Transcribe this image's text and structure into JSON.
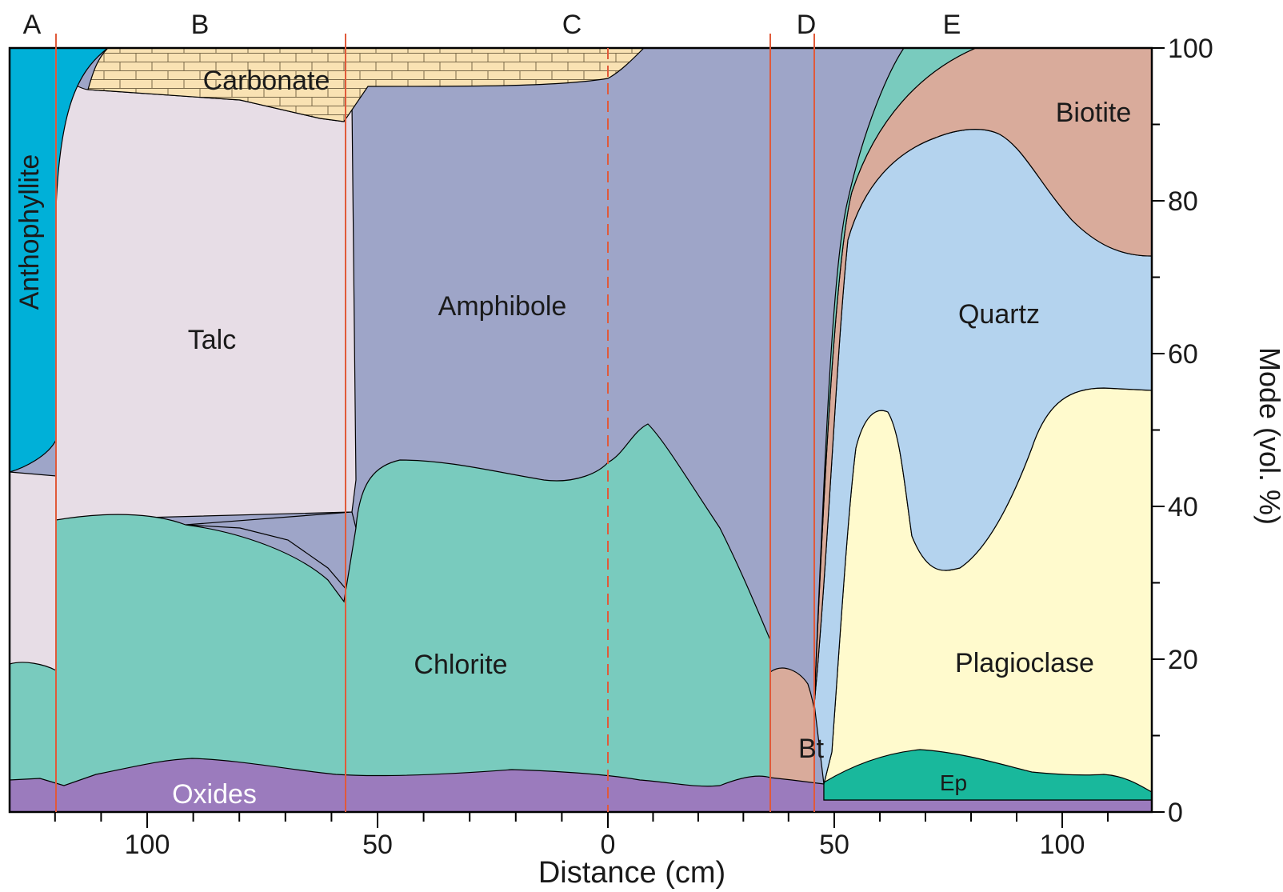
{
  "chart_data": {
    "type": "area",
    "xlabel": "Distance (cm)",
    "ylabel": "Mode (vol. %)",
    "ylim": [
      0,
      100
    ],
    "y_ticks": [
      "0",
      "20",
      "40",
      "60",
      "80",
      "100"
    ],
    "x_ticks": [
      "100",
      "50",
      "0",
      "50",
      "100"
    ],
    "zones": [
      "A",
      "B",
      "C",
      "D",
      "E"
    ],
    "layers": [
      {
        "name": "Oxides",
        "color": "#9b7bbd"
      },
      {
        "name": "Chlorite",
        "color": "#79cbbe"
      },
      {
        "name": "Talc",
        "color": "#e7dde6"
      },
      {
        "name": "Amphibole",
        "color": "#9ea5c8"
      },
      {
        "name": "Carbonate",
        "color": "#f9e2b3"
      },
      {
        "name": "Anthophyllite",
        "color": "#00b0d8"
      },
      {
        "name": "Bt",
        "color": "#d9ab9b"
      },
      {
        "name": "Ep",
        "color": "#19b89c"
      },
      {
        "name": "Plagioclase",
        "color": "#fffacd"
      },
      {
        "name": "Quartz",
        "color": "#b4d3ee"
      },
      {
        "name": "Biotite",
        "color": "#d9ab9b"
      }
    ],
    "series": [
      {
        "name": "Oxides",
        "note": "top boundary, x in left-side cm (decreasing)",
        "x": [
          126,
          120,
          110,
          100,
          90,
          80,
          70,
          60,
          50,
          40,
          30,
          20,
          10,
          0,
          -10,
          -20,
          -30,
          -35
        ],
        "y": [
          2,
          1.5,
          3,
          4,
          4.5,
          4,
          3,
          2.5,
          2.5,
          3,
          3.5,
          3.5,
          3,
          2.5,
          1.5,
          2,
          2.5,
          2
        ]
      },
      {
        "name": "Chlorite",
        "x": [
          120,
          110,
          100,
          90,
          80,
          70,
          60,
          56,
          50,
          40,
          30,
          20,
          10,
          0,
          -10,
          -20,
          -30,
          -35,
          -42
        ],
        "y": [
          37,
          38,
          36,
          35,
          33,
          30,
          26,
          25,
          44,
          45,
          43,
          42,
          41,
          44,
          49,
          40,
          27,
          21,
          14
        ]
      },
      {
        "name": "Talc",
        "x": [
          120,
          110,
          100,
          90,
          80,
          70,
          60,
          56
        ],
        "y": [
          95,
          94,
          93,
          92,
          91,
          90,
          90,
          90
        ]
      },
      {
        "name": "Amphibole",
        "x": [
          56,
          50,
          40,
          30,
          20,
          10,
          5,
          -10,
          -20,
          -30,
          -40,
          -45
        ],
        "y": [
          96,
          96,
          95,
          95,
          94,
          93,
          94,
          100,
          100,
          100,
          100,
          100
        ]
      },
      {
        "name": "Plagioclase",
        "note": "top boundary, x in right-side cm (increasing)",
        "x": [
          48,
          52,
          58,
          62,
          66,
          72,
          80,
          90,
          100,
          110,
          118
        ],
        "y": [
          3,
          38,
          50,
          48,
          32,
          30,
          36,
          50,
          54,
          54,
          54
        ]
      },
      {
        "name": "Quartz",
        "x": [
          48,
          52,
          60,
          70,
          80,
          90,
          100,
          110,
          118
        ],
        "y": [
          14,
          72,
          83,
          89,
          88,
          82,
          77,
          72,
          72
        ]
      },
      {
        "name": "Biotite",
        "x": [
          48,
          52,
          60,
          70,
          80,
          90,
          100,
          118
        ],
        "y": [
          15,
          75,
          92,
          97,
          100,
          100,
          100,
          100
        ]
      },
      {
        "name": "Ep",
        "x": [
          48,
          60,
          70,
          80,
          90,
          100,
          110,
          118
        ],
        "y": [
          1,
          5,
          5.5,
          4,
          3,
          2,
          2.5,
          1
        ]
      }
    ]
  },
  "labels": {
    "anthophyllite": "Anthophyllite",
    "carbonate": "Carbonate",
    "talc": "Talc",
    "amphibole": "Amphibole",
    "chlorite": "Chlorite",
    "oxides": "Oxides",
    "bt": "Bt",
    "ep": "Ep",
    "quartz": "Quartz",
    "plagioclase": "Plagioclase",
    "biotite": "Biotite"
  }
}
